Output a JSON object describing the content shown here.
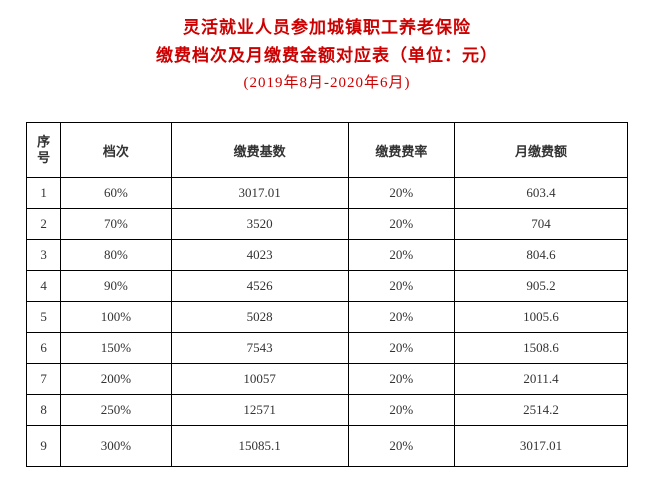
{
  "header": {
    "title_line1": "灵活就业人员参加城镇职工养老保险",
    "title_line2": "缴费档次及月缴费金额对应表（单位：元）",
    "period": "(2019年8月-2020年6月)"
  },
  "table": {
    "columns": {
      "seq1": "序",
      "seq2": "号",
      "tier": "档次",
      "base": "缴费基数",
      "rate": "缴费费率",
      "amount": "月缴费额"
    },
    "rows": [
      {
        "seq": "1",
        "tier": "60%",
        "base": "3017.01",
        "rate": "20%",
        "amount": "603.4"
      },
      {
        "seq": "2",
        "tier": "70%",
        "base": "3520",
        "rate": "20%",
        "amount": "704"
      },
      {
        "seq": "3",
        "tier": "80%",
        "base": "4023",
        "rate": "20%",
        "amount": "804.6"
      },
      {
        "seq": "4",
        "tier": "90%",
        "base": "4526",
        "rate": "20%",
        "amount": "905.2"
      },
      {
        "seq": "5",
        "tier": "100%",
        "base": "5028",
        "rate": "20%",
        "amount": "1005.6"
      },
      {
        "seq": "6",
        "tier": "150%",
        "base": "7543",
        "rate": "20%",
        "amount": "1508.6"
      },
      {
        "seq": "7",
        "tier": "200%",
        "base": "10057",
        "rate": "20%",
        "amount": "2011.4"
      },
      {
        "seq": "8",
        "tier": "250%",
        "base": "12571",
        "rate": "20%",
        "amount": "2514.2"
      },
      {
        "seq": "9",
        "tier": "300%",
        "base": "15085.1",
        "rate": "20%",
        "amount": "3017.01"
      }
    ]
  },
  "colors": {
    "title": "#cc0000",
    "text": "#333333",
    "border": "#000000",
    "background": "#ffffff"
  },
  "typography": {
    "title_fontsize_pt": 13,
    "body_fontsize_pt": 10,
    "font_family": "SimSun"
  }
}
